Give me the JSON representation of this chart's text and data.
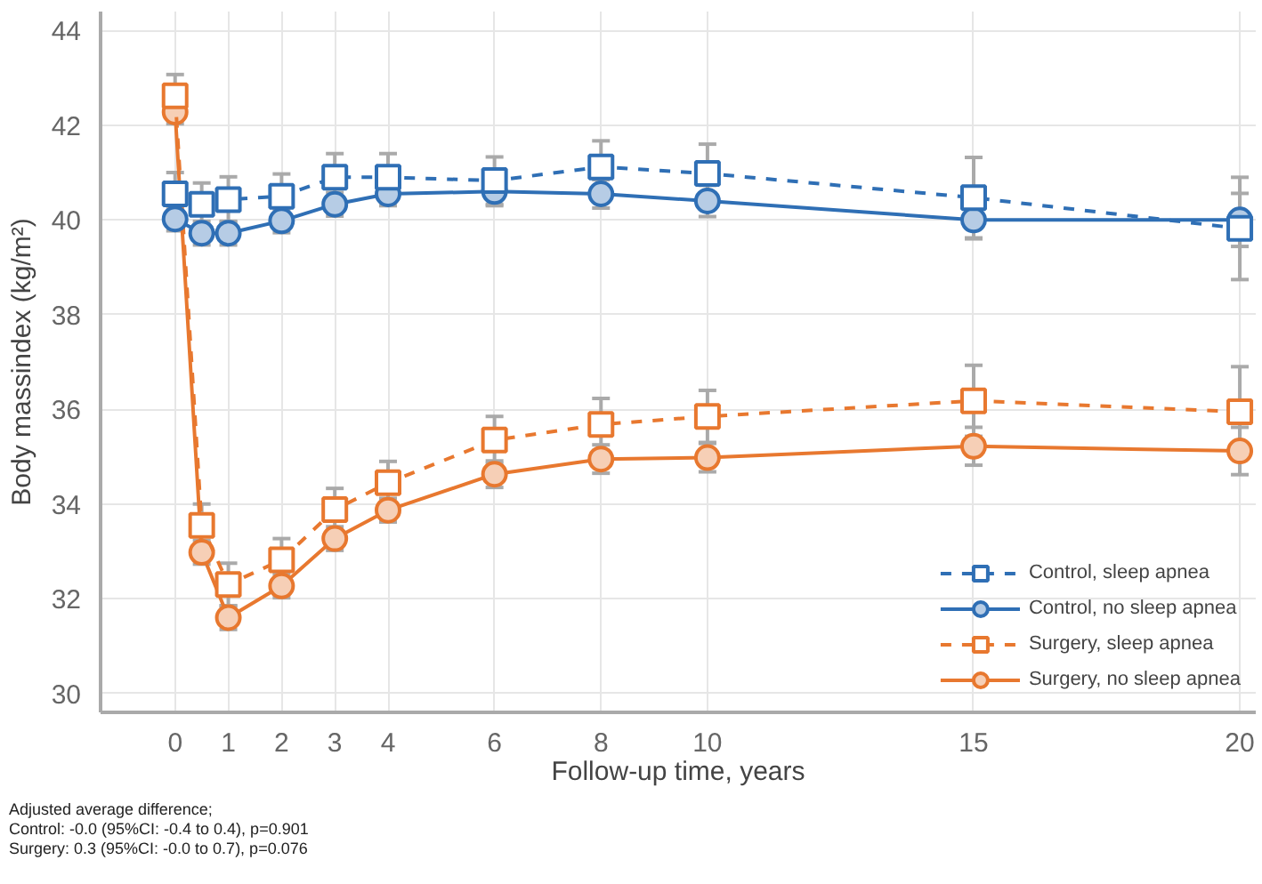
{
  "chart_data": {
    "type": "line",
    "xlabel": "Follow-up time, years",
    "ylabel": "Body massindex (kg/m²)",
    "x": [
      0,
      0.5,
      1,
      2,
      3,
      4,
      6,
      8,
      10,
      15,
      20
    ],
    "xlim": [
      -1.4,
      20.3
    ],
    "ylim": [
      29.6,
      44.4
    ],
    "xticks": [
      0,
      1,
      2,
      3,
      4,
      6,
      8,
      10,
      15,
      20
    ],
    "yticks": [
      30,
      32,
      34,
      36,
      38,
      40,
      42,
      44
    ],
    "grid": true,
    "legend": "bottom right",
    "series": [
      {
        "name": "Control, sleep apnea",
        "color": "#2f6fb5",
        "marker": "square",
        "line_style": "dashed",
        "values": [
          40.55,
          40.33,
          40.43,
          40.5,
          40.9,
          40.9,
          40.83,
          41.12,
          40.98,
          40.47,
          39.82
        ],
        "errors": [
          0.45,
          0.45,
          0.48,
          0.47,
          0.5,
          0.5,
          0.5,
          0.55,
          0.62,
          0.85,
          1.08
        ]
      },
      {
        "name": "Control, no sleep apnea",
        "color": "#2f6fb5",
        "marker": "circle",
        "line_style": "solid",
        "values": [
          40.02,
          39.72,
          39.72,
          39.98,
          40.33,
          40.55,
          40.6,
          40.55,
          40.4,
          40.0,
          40.0
        ],
        "errors": [
          0.25,
          0.25,
          0.25,
          0.25,
          0.25,
          0.25,
          0.3,
          0.3,
          0.33,
          0.4,
          0.56
        ]
      },
      {
        "name": "Surgery, sleep apnea",
        "color": "#e8782f",
        "marker": "square",
        "line_style": "dashed",
        "values": [
          42.62,
          33.55,
          32.3,
          32.82,
          33.88,
          34.45,
          35.35,
          35.68,
          35.85,
          36.18,
          35.95
        ],
        "errors": [
          0.45,
          0.45,
          0.45,
          0.45,
          0.45,
          0.45,
          0.5,
          0.55,
          0.55,
          0.75,
          0.95
        ]
      },
      {
        "name": "Surgery, no sleep apnea",
        "color": "#e8782f",
        "marker": "circle",
        "line_style": "solid",
        "values": [
          42.28,
          32.98,
          31.6,
          32.27,
          33.27,
          33.87,
          34.63,
          34.95,
          34.98,
          35.22,
          35.12
        ],
        "errors": [
          0.25,
          0.25,
          0.25,
          0.25,
          0.25,
          0.25,
          0.28,
          0.3,
          0.3,
          0.4,
          0.5
        ]
      }
    ],
    "annotations": [
      "Adjusted average difference;",
      "Control: -0.0 (95%CI: -0.4 to 0.4), p=0.901",
      "Surgery: 0.3 (95%CI: -0.0 to 0.7), p=0.076"
    ]
  }
}
